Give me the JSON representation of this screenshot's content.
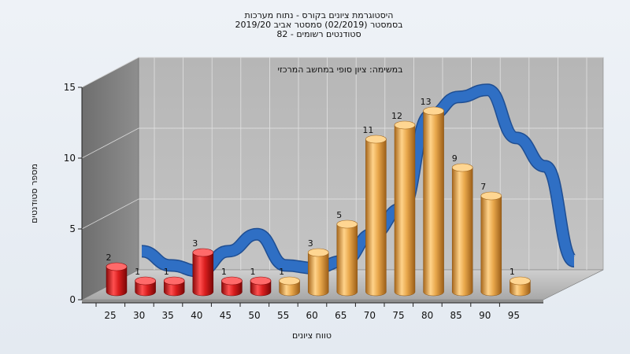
{
  "chart_data": {
    "type": "bar",
    "title_lines": [
      "היסטוגרמת ציונים בקורס - נתוח מערכות",
      "בסמסטר  (02/2019)  סמסטר אביב 2019/20",
      "סטודנטים רשומים - 82"
    ],
    "annotation": "במשימה: ציון סופי במחשב המרכזי",
    "xlabel": "טווח ציונים",
    "ylabel": "מספר סטודנטים",
    "ylim": [
      0,
      15
    ],
    "yticks": [
      0,
      5,
      10,
      15
    ],
    "x_tick_labels": [
      "25",
      "30",
      "35",
      "40",
      "45",
      "50",
      "55",
      "60",
      "65",
      "70",
      "75",
      "80",
      "85",
      "90",
      "95"
    ],
    "categories": [
      "25",
      "30",
      "35",
      "40",
      "45",
      "50",
      "55",
      "60",
      "65",
      "70",
      "75",
      "80",
      "85",
      "90",
      "95"
    ],
    "values": [
      2,
      1,
      1,
      3,
      1,
      1,
      1,
      3,
      5,
      11,
      12,
      13,
      9,
      7,
      1
    ],
    "bar_colors": [
      "#d42020",
      "#d42020",
      "#d42020",
      "#d42020",
      "#d42020",
      "#d42020",
      "#e3a24a",
      "#e3a24a",
      "#e3a24a",
      "#e3a24a",
      "#e3a24a",
      "#e3a24a",
      "#e3a24a",
      "#e3a24a",
      "#e3a24a"
    ],
    "curve": {
      "type": "line",
      "color": "#2f6fc4",
      "x": [
        25,
        30,
        35,
        40,
        45,
        50,
        55,
        60,
        65,
        70,
        75,
        80,
        85,
        90,
        95,
        100
      ],
      "values": [
        2.2,
        1.2,
        0.8,
        2.2,
        3.4,
        1.2,
        1.0,
        1.5,
        3.4,
        5.2,
        11.8,
        13.1,
        13.6,
        10.2,
        8.2,
        1.5
      ]
    },
    "grid": true
  }
}
